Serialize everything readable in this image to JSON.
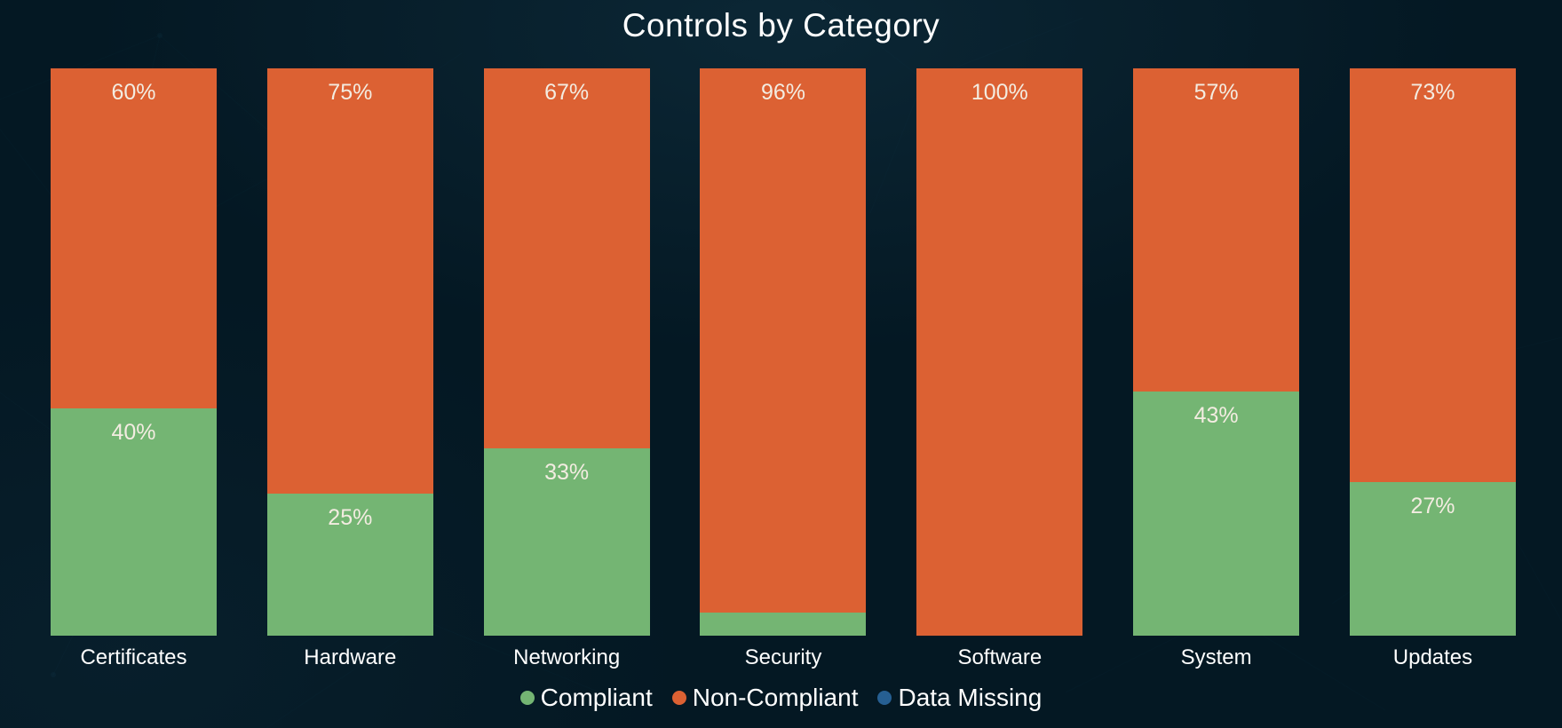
{
  "chart": {
    "title": "Controls by Category"
  },
  "colors": {
    "background": "#041823",
    "compliant": "#74b573",
    "non_compliant": "#dc6133",
    "data_missing": "#265f92",
    "segment_label": "#f3ece1",
    "text": "#ffffff"
  },
  "legend": {
    "items": [
      {
        "label": "Compliant",
        "key": "compliant"
      },
      {
        "label": "Non-Compliant",
        "key": "non_compliant"
      },
      {
        "label": "Data Missing",
        "key": "data_missing"
      }
    ]
  },
  "chart_data": {
    "type": "bar",
    "stacked": true,
    "percent_stacked": true,
    "title": "Controls by Category",
    "categories": [
      "Certificates",
      "Hardware",
      "Networking",
      "Security",
      "Software",
      "System",
      "Updates"
    ],
    "series": [
      {
        "name": "Non-Compliant",
        "key": "non_compliant",
        "values": [
          60,
          75,
          67,
          96,
          100,
          57,
          73
        ],
        "labels": [
          "60%",
          "75%",
          "67%",
          "96%",
          "100%",
          "57%",
          "73%"
        ]
      },
      {
        "name": "Compliant",
        "key": "compliant",
        "values": [
          40,
          25,
          33,
          4,
          0,
          43,
          27
        ],
        "labels": [
          "40%",
          "25%",
          "33%",
          "",
          "",
          "43%",
          "27%"
        ]
      },
      {
        "name": "Data Missing",
        "key": "data_missing",
        "values": [
          0,
          0,
          0,
          0,
          0,
          0,
          0
        ],
        "labels": [
          "",
          "",
          "",
          "",
          "",
          "",
          ""
        ]
      }
    ],
    "ylim": [
      0,
      100
    ],
    "grid": false,
    "legend_position": "bottom",
    "segment_order_top_to_bottom": [
      "Non-Compliant",
      "Compliant",
      "Data Missing"
    ]
  }
}
